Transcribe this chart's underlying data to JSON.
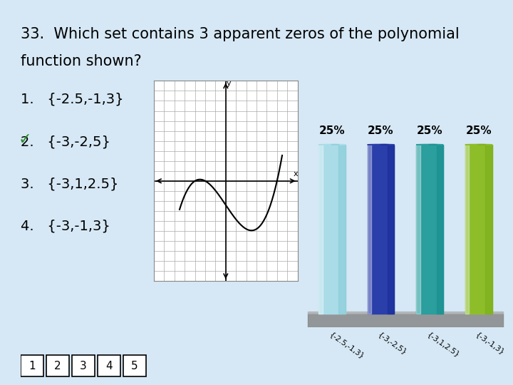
{
  "background_color": "#d6e8f5",
  "title_line1": "33.  Which set contains 3 apparent zeros of the polynomial",
  "title_line2": "function shown?",
  "title_fontsize": 15,
  "options": [
    "1.   {-2.5,-1,3}",
    "2.   {-3,-2,5}",
    "3.   {-3,1,2.5}",
    "4.   {-3,-1,3}"
  ],
  "checkmark_option": 1,
  "bar_labels": [
    "{-2.5,-1,3}",
    "{-3,-2,5}",
    "{-3,1,2.5}",
    "{-3,-1,3}"
  ],
  "bar_values": [
    25,
    25,
    25,
    25
  ],
  "bar_colors": [
    "#aadce8",
    "#2b3faa",
    "#2b9e9e",
    "#8dbe2a"
  ],
  "bar_dark_colors": [
    "#88ccd8",
    "#1a2d99",
    "#1a8e8e",
    "#7aae1a"
  ],
  "percentage_labels": [
    "25%",
    "25%",
    "25%",
    "25%"
  ],
  "nav_numbers": [
    "1",
    "2",
    "3",
    "4",
    "5"
  ],
  "text_color": "#000000",
  "checkmark_color": "#2d8c2d"
}
